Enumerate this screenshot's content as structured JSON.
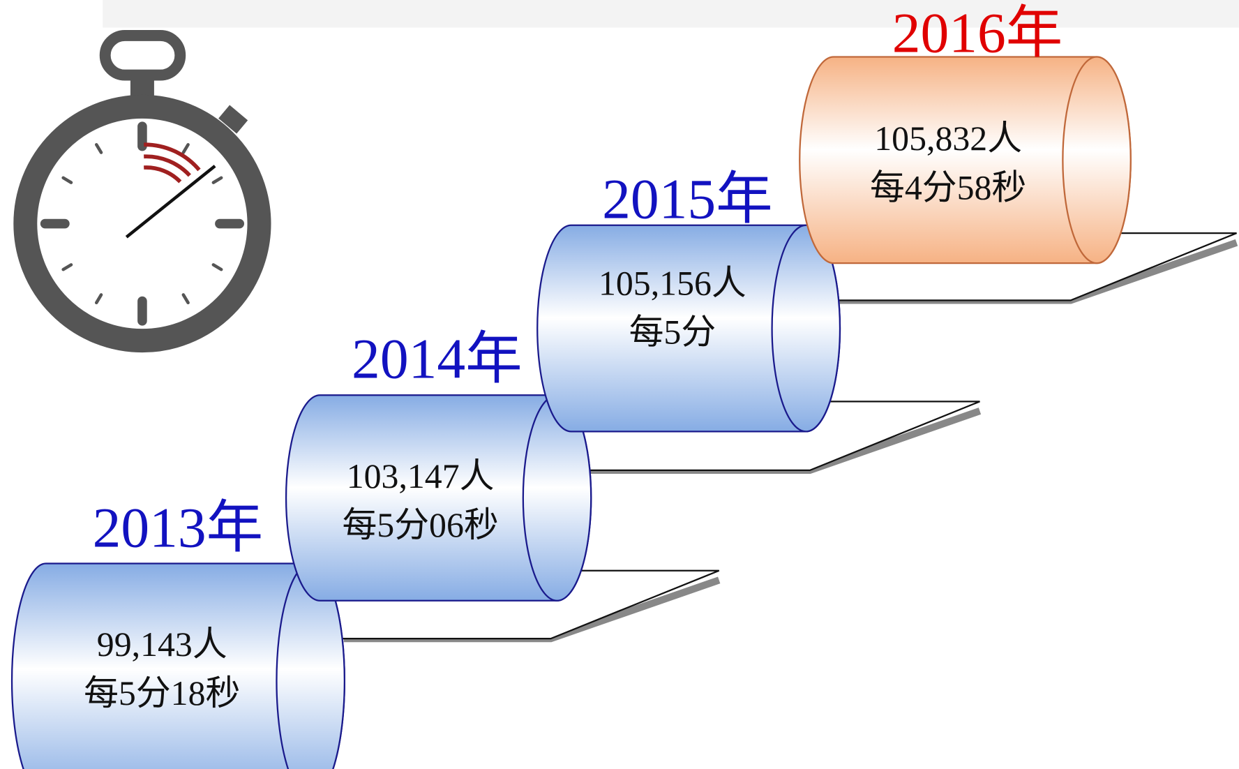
{
  "steps": [
    {
      "year": "2013年",
      "count": "99,143人",
      "rate": "每5分18秒"
    },
    {
      "year": "2014年",
      "count": "103,147人",
      "rate": "每5分06秒"
    },
    {
      "year": "2015年",
      "count": "105,156人",
      "rate": "每5分"
    },
    {
      "year": "2016年",
      "count": "105,832人",
      "rate": "每4分58秒"
    }
  ]
}
